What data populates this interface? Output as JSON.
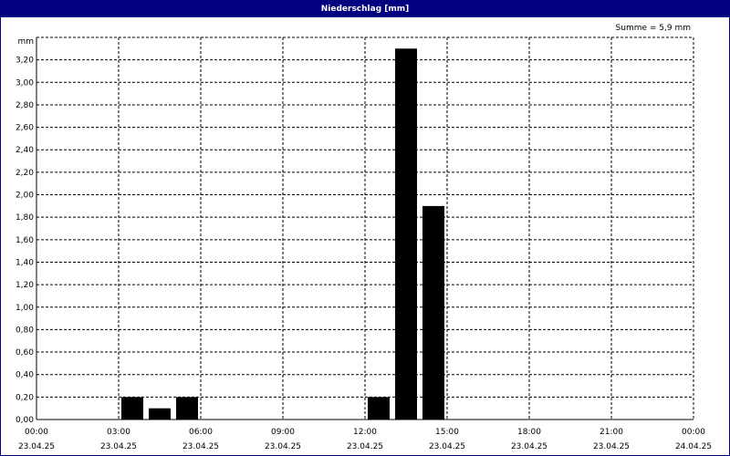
{
  "window": {
    "title": "Niederschlag [mm]"
  },
  "summary": "Summe = 5,9 mm",
  "chart_data": {
    "type": "bar",
    "title": "Niederschlag [mm]",
    "ylabel": "mm",
    "ylim": [
      0,
      3.4
    ],
    "grid": true,
    "y_ticks": [
      "0,00",
      "0,20",
      "0,40",
      "0,60",
      "0,80",
      "1,00",
      "1,20",
      "1,40",
      "1,60",
      "1,80",
      "2,00",
      "2,20",
      "2,40",
      "2,60",
      "2,80",
      "3,00",
      "3,20"
    ],
    "x_ticks": [
      {
        "time": "00:00",
        "date": "23.04.25"
      },
      {
        "time": "03:00",
        "date": "23.04.25"
      },
      {
        "time": "06:00",
        "date": "23.04.25"
      },
      {
        "time": "09:00",
        "date": "23.04.25"
      },
      {
        "time": "12:00",
        "date": "23.04.25"
      },
      {
        "time": "15:00",
        "date": "23.04.25"
      },
      {
        "time": "18:00",
        "date": "23.04.25"
      },
      {
        "time": "21:00",
        "date": "23.04.25"
      },
      {
        "time": "00:00",
        "date": "24.04.25"
      }
    ],
    "x_range_hours": [
      0,
      24
    ],
    "bar_color": "#000000",
    "bars": [
      {
        "hour": 3,
        "value": 0.2
      },
      {
        "hour": 4,
        "value": 0.1
      },
      {
        "hour": 5,
        "value": 0.2
      },
      {
        "hour": 12,
        "value": 0.2
      },
      {
        "hour": 13,
        "value": 3.3
      },
      {
        "hour": 14,
        "value": 1.9
      }
    ]
  }
}
